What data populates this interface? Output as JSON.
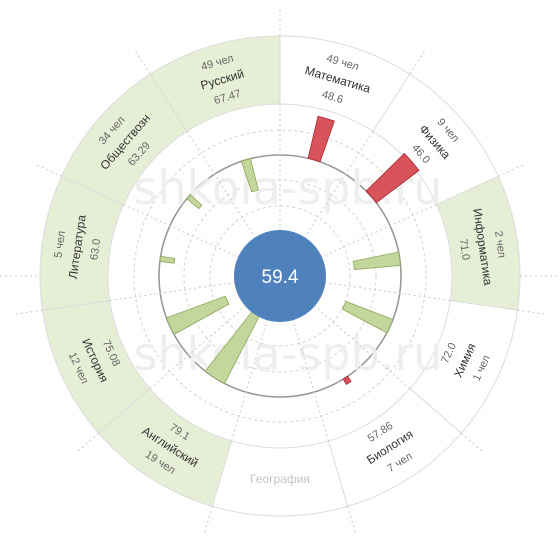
{
  "watermark": "shkola-spb.ru",
  "chart_data": {
    "type": "radial-bar",
    "average": "59.4",
    "baseline": 59.4,
    "colors": {
      "above": "#d9535b",
      "below": "#c3d69b",
      "highlight_band": "#e6eed6",
      "center": "#4f81bd"
    },
    "categories": [
      {
        "name": "Математика",
        "value": "48.6",
        "count": "49 чел",
        "highlight": false
      },
      {
        "name": "Физика",
        "value": "46.0",
        "count": "9 чел",
        "highlight": false
      },
      {
        "name": "Информатика",
        "value": "71.0",
        "count": "2 чел",
        "highlight": true
      },
      {
        "name": "Химия",
        "value": "72.0",
        "count": "1 чел",
        "highlight": false
      },
      {
        "name": "Биология",
        "value": "57.86",
        "count": "7 чел",
        "highlight": false
      },
      {
        "name": "География",
        "value": "",
        "count": "",
        "highlight": false
      },
      {
        "name": "Английский",
        "value": "79.1",
        "count": "19 чел",
        "highlight": true
      },
      {
        "name": "История",
        "value": "75.08",
        "count": "12 чел",
        "highlight": true
      },
      {
        "name": "Литература",
        "value": "63.0",
        "count": "5 чел",
        "highlight": true
      },
      {
        "name": "Обществозн",
        "value": "63.29",
        "count": "34 чел",
        "highlight": true
      },
      {
        "name": "Русский",
        "value": "67.47",
        "count": "49 чел",
        "highlight": true
      }
    ],
    "bars": [
      {
        "category": "Математика",
        "value": 48.6
      },
      {
        "category": "Физика",
        "value": 46.0
      },
      {
        "category": "Информатика",
        "value": 71.0
      },
      {
        "category": "Химия",
        "value": 72.0
      },
      {
        "category": "Биология",
        "value": 57.86
      },
      {
        "category": "Английский",
        "value": 79.1
      },
      {
        "category": "История",
        "value": 75.08
      },
      {
        "category": "Литература",
        "value": 63.0
      },
      {
        "category": "Обществозн",
        "value": 63.29
      },
      {
        "category": "Русский",
        "value": 67.47
      }
    ]
  }
}
